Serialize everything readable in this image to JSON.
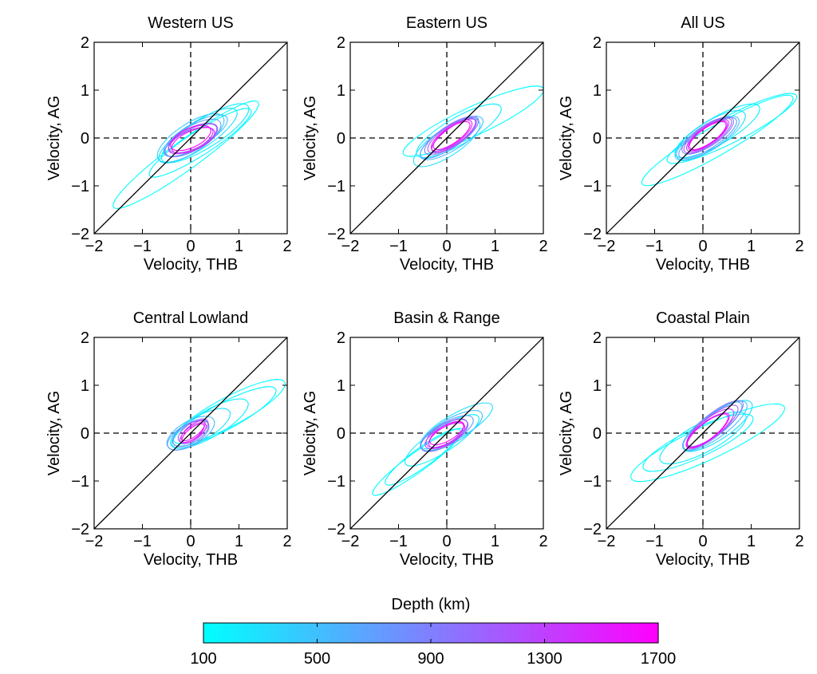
{
  "chart_data": {
    "type": "scatter",
    "panels": [
      {
        "title": "Western US",
        "xlabel": "Velocity, THB",
        "ylabel": "Velocity, AG",
        "xlim": [
          -2,
          2
        ],
        "ylim": [
          -2,
          2
        ],
        "xticks": [
          -2,
          -1,
          0,
          1,
          2
        ],
        "yticks": [
          -2,
          -1,
          0,
          1,
          2
        ],
        "ellipses": [
          {
            "depth": 100,
            "cx": -0.1,
            "cy": -0.35,
            "a": 1.85,
            "b": 0.3,
            "angle": 36
          },
          {
            "depth": 150,
            "cx": 0.2,
            "cy": -0.1,
            "a": 1.25,
            "b": 0.25,
            "angle": 33
          },
          {
            "depth": 200,
            "cx": 0.3,
            "cy": 0.1,
            "a": 1.05,
            "b": 0.3,
            "angle": 32
          },
          {
            "depth": 300,
            "cx": 0.15,
            "cy": 0.05,
            "a": 0.95,
            "b": 0.28,
            "angle": 33
          },
          {
            "depth": 400,
            "cx": 0.0,
            "cy": 0.0,
            "a": 0.8,
            "b": 0.3,
            "angle": 33
          },
          {
            "depth": 500,
            "cx": 0.1,
            "cy": 0.05,
            "a": 0.75,
            "b": 0.25,
            "angle": 30
          },
          {
            "depth": 700,
            "cx": 0.05,
            "cy": 0.0,
            "a": 0.65,
            "b": 0.25,
            "angle": 30
          },
          {
            "depth": 900,
            "cx": 0.0,
            "cy": -0.05,
            "a": 0.6,
            "b": 0.22,
            "angle": 28
          },
          {
            "depth": 1100,
            "cx": 0.05,
            "cy": 0.0,
            "a": 0.55,
            "b": 0.22,
            "angle": 25
          },
          {
            "depth": 1300,
            "cx": 0.0,
            "cy": -0.05,
            "a": 0.5,
            "b": 0.2,
            "angle": 25
          },
          {
            "depth": 1500,
            "cx": 0.05,
            "cy": -0.05,
            "a": 0.48,
            "b": 0.2,
            "angle": 24
          },
          {
            "depth": 1700,
            "cx": 0.0,
            "cy": 0.0,
            "a": 0.45,
            "b": 0.2,
            "angle": 25
          }
        ]
      },
      {
        "title": "Eastern US",
        "xlabel": "Velocity, THB",
        "ylabel": "Velocity, AG",
        "xlim": [
          -2,
          2
        ],
        "ylim": [
          -2,
          2
        ],
        "xticks": [
          -2,
          -1,
          0,
          1,
          2
        ],
        "yticks": [
          -2,
          -1,
          0,
          1,
          2
        ],
        "ellipses": [
          {
            "depth": 100,
            "cx": 0.55,
            "cy": 0.35,
            "a": 1.6,
            "b": 0.3,
            "angle": 25
          },
          {
            "depth": 200,
            "cx": 0.25,
            "cy": 0.15,
            "a": 1.0,
            "b": 0.28,
            "angle": 30
          },
          {
            "depth": 300,
            "cx": 0.0,
            "cy": -0.1,
            "a": 0.8,
            "b": 0.28,
            "angle": 33
          },
          {
            "depth": 500,
            "cx": 0.1,
            "cy": 0.0,
            "a": 0.75,
            "b": 0.25,
            "angle": 32
          },
          {
            "depth": 700,
            "cx": 0.05,
            "cy": 0.0,
            "a": 0.7,
            "b": 0.22,
            "angle": 33
          },
          {
            "depth": 900,
            "cx": 0.1,
            "cy": 0.05,
            "a": 0.65,
            "b": 0.22,
            "angle": 33
          },
          {
            "depth": 1100,
            "cx": 0.1,
            "cy": 0.05,
            "a": 0.58,
            "b": 0.2,
            "angle": 34
          },
          {
            "depth": 1300,
            "cx": 0.15,
            "cy": 0.05,
            "a": 0.55,
            "b": 0.18,
            "angle": 35
          },
          {
            "depth": 1500,
            "cx": 0.1,
            "cy": 0.05,
            "a": 0.5,
            "b": 0.18,
            "angle": 35
          },
          {
            "depth": 1700,
            "cx": 0.1,
            "cy": 0.05,
            "a": 0.45,
            "b": 0.16,
            "angle": 35
          }
        ]
      },
      {
        "title": "All US",
        "xlabel": "Velocity, THB",
        "ylabel": "Velocity, AG",
        "xlim": [
          -2,
          2
        ],
        "ylim": [
          -2,
          2
        ],
        "xticks": [
          -2,
          -1,
          0,
          1,
          2
        ],
        "yticks": [
          -2,
          -1,
          0,
          1,
          2
        ],
        "ellipses": [
          {
            "depth": 100,
            "cx": 0.3,
            "cy": -0.05,
            "a": 1.8,
            "b": 0.3,
            "angle": 30
          },
          {
            "depth": 150,
            "cx": 0.6,
            "cy": 0.2,
            "a": 1.5,
            "b": 0.28,
            "angle": 27
          },
          {
            "depth": 200,
            "cx": 0.3,
            "cy": 0.15,
            "a": 1.0,
            "b": 0.28,
            "angle": 30
          },
          {
            "depth": 300,
            "cx": 0.15,
            "cy": 0.05,
            "a": 0.85,
            "b": 0.28,
            "angle": 33
          },
          {
            "depth": 500,
            "cx": 0.1,
            "cy": 0.0,
            "a": 0.75,
            "b": 0.25,
            "angle": 32
          },
          {
            "depth": 700,
            "cx": 0.1,
            "cy": 0.0,
            "a": 0.7,
            "b": 0.22,
            "angle": 33
          },
          {
            "depth": 900,
            "cx": 0.1,
            "cy": 0.05,
            "a": 0.62,
            "b": 0.22,
            "angle": 33
          },
          {
            "depth": 1100,
            "cx": 0.1,
            "cy": 0.05,
            "a": 0.58,
            "b": 0.2,
            "angle": 34
          },
          {
            "depth": 1300,
            "cx": 0.1,
            "cy": 0.05,
            "a": 0.52,
            "b": 0.18,
            "angle": 35
          },
          {
            "depth": 1500,
            "cx": 0.1,
            "cy": 0.05,
            "a": 0.48,
            "b": 0.17,
            "angle": 35
          },
          {
            "depth": 1700,
            "cx": 0.1,
            "cy": 0.05,
            "a": 0.45,
            "b": 0.16,
            "angle": 35
          }
        ]
      },
      {
        "title": "Central Lowland",
        "xlabel": "Velocity, THB",
        "ylabel": "Velocity, AG",
        "xlim": [
          -2,
          2
        ],
        "ylim": [
          -2,
          2
        ],
        "xticks": [
          -2,
          -1,
          0,
          1,
          2
        ],
        "yticks": [
          -2,
          -1,
          0,
          1,
          2
        ],
        "ellipses": [
          {
            "depth": 100,
            "cx": 0.8,
            "cy": 0.45,
            "a": 1.3,
            "b": 0.3,
            "angle": 28
          },
          {
            "depth": 150,
            "cx": 0.7,
            "cy": 0.35,
            "a": 1.2,
            "b": 0.28,
            "angle": 28
          },
          {
            "depth": 200,
            "cx": 0.4,
            "cy": 0.2,
            "a": 0.9,
            "b": 0.28,
            "angle": 30
          },
          {
            "depth": 300,
            "cx": 0.2,
            "cy": 0.1,
            "a": 0.7,
            "b": 0.25,
            "angle": 30
          },
          {
            "depth": 500,
            "cx": 0.0,
            "cy": 0.0,
            "a": 0.55,
            "b": 0.25,
            "angle": 30
          },
          {
            "depth": 700,
            "cx": -0.05,
            "cy": -0.05,
            "a": 0.48,
            "b": 0.22,
            "angle": 30
          },
          {
            "depth": 900,
            "cx": 0.0,
            "cy": 0.0,
            "a": 0.42,
            "b": 0.2,
            "angle": 32
          },
          {
            "depth": 1100,
            "cx": 0.05,
            "cy": 0.05,
            "a": 0.36,
            "b": 0.16,
            "angle": 35
          },
          {
            "depth": 1300,
            "cx": 0.05,
            "cy": 0.0,
            "a": 0.32,
            "b": 0.14,
            "angle": 36
          },
          {
            "depth": 1500,
            "cx": 0.05,
            "cy": 0.05,
            "a": 0.3,
            "b": 0.12,
            "angle": 38
          },
          {
            "depth": 1700,
            "cx": 0.05,
            "cy": 0.0,
            "a": 0.28,
            "b": 0.11,
            "angle": 38
          }
        ]
      },
      {
        "title": "Basin & Range",
        "xlabel": "Velocity, THB",
        "ylabel": "Velocity, AG",
        "xlim": [
          -2,
          2
        ],
        "ylim": [
          -2,
          2
        ],
        "xticks": [
          -2,
          -1,
          0,
          1,
          2
        ],
        "yticks": [
          -2,
          -1,
          0,
          1,
          2
        ],
        "ellipses": [
          {
            "depth": 100,
            "cx": -0.6,
            "cy": -0.6,
            "a": 1.15,
            "b": 0.2,
            "angle": 36
          },
          {
            "depth": 150,
            "cx": -0.5,
            "cy": -0.5,
            "a": 0.95,
            "b": 0.2,
            "angle": 36
          },
          {
            "depth": 200,
            "cx": -0.1,
            "cy": -0.15,
            "a": 0.9,
            "b": 0.25,
            "angle": 33
          },
          {
            "depth": 300,
            "cx": 0.2,
            "cy": 0.15,
            "a": 0.85,
            "b": 0.25,
            "angle": 30
          },
          {
            "depth": 500,
            "cx": 0.1,
            "cy": 0.05,
            "a": 0.72,
            "b": 0.25,
            "angle": 30
          },
          {
            "depth": 700,
            "cx": 0.0,
            "cy": 0.0,
            "a": 0.62,
            "b": 0.22,
            "angle": 30
          },
          {
            "depth": 900,
            "cx": -0.05,
            "cy": -0.05,
            "a": 0.55,
            "b": 0.22,
            "angle": 30
          },
          {
            "depth": 1100,
            "cx": 0.0,
            "cy": 0.0,
            "a": 0.48,
            "b": 0.2,
            "angle": 30
          },
          {
            "depth": 1300,
            "cx": -0.05,
            "cy": -0.05,
            "a": 0.45,
            "b": 0.18,
            "angle": 30
          },
          {
            "depth": 1500,
            "cx": 0.0,
            "cy": -0.05,
            "a": 0.42,
            "b": 0.18,
            "angle": 30
          },
          {
            "depth": 1700,
            "cx": 0.0,
            "cy": 0.0,
            "a": 0.4,
            "b": 0.16,
            "angle": 30
          }
        ]
      },
      {
        "title": "Coastal Plain",
        "xlabel": "Velocity, THB",
        "ylabel": "Velocity, AG",
        "xlim": [
          -2,
          2
        ],
        "ylim": [
          -2,
          2
        ],
        "xticks": [
          -2,
          -1,
          0,
          1,
          2
        ],
        "yticks": [
          -2,
          -1,
          0,
          1,
          2
        ],
        "ellipses": [
          {
            "depth": 100,
            "cx": 0.1,
            "cy": -0.2,
            "a": 1.75,
            "b": 0.35,
            "angle": 25
          },
          {
            "depth": 150,
            "cx": -0.1,
            "cy": -0.2,
            "a": 1.25,
            "b": 0.3,
            "angle": 25
          },
          {
            "depth": 200,
            "cx": 0.0,
            "cy": -0.1,
            "a": 1.0,
            "b": 0.3,
            "angle": 28
          },
          {
            "depth": 300,
            "cx": 0.3,
            "cy": 0.15,
            "a": 0.85,
            "b": 0.28,
            "angle": 34
          },
          {
            "depth": 500,
            "cx": 0.25,
            "cy": 0.15,
            "a": 0.8,
            "b": 0.25,
            "angle": 36
          },
          {
            "depth": 700,
            "cx": 0.2,
            "cy": 0.15,
            "a": 0.75,
            "b": 0.23,
            "angle": 38
          },
          {
            "depth": 900,
            "cx": 0.25,
            "cy": 0.2,
            "a": 0.72,
            "b": 0.22,
            "angle": 38
          },
          {
            "depth": 1100,
            "cx": 0.2,
            "cy": 0.15,
            "a": 0.65,
            "b": 0.2,
            "angle": 38
          },
          {
            "depth": 1300,
            "cx": 0.15,
            "cy": 0.1,
            "a": 0.6,
            "b": 0.2,
            "angle": 38
          },
          {
            "depth": 1500,
            "cx": 0.1,
            "cy": 0.05,
            "a": 0.55,
            "b": 0.18,
            "angle": 38
          },
          {
            "depth": 1700,
            "cx": 0.1,
            "cy": 0.05,
            "a": 0.52,
            "b": 0.17,
            "angle": 38
          }
        ]
      }
    ],
    "reference_lines": {
      "diagonal": "y = x",
      "zero_lines": "dashed at x = 0 and y = 0"
    },
    "colorbar": {
      "title": "Depth (km)",
      "min": 100,
      "max": 1700,
      "ticks": [
        100,
        500,
        900,
        1300,
        1700
      ],
      "color_low": "#00ffff",
      "color_high": "#ff00ff"
    },
    "grid": false
  }
}
